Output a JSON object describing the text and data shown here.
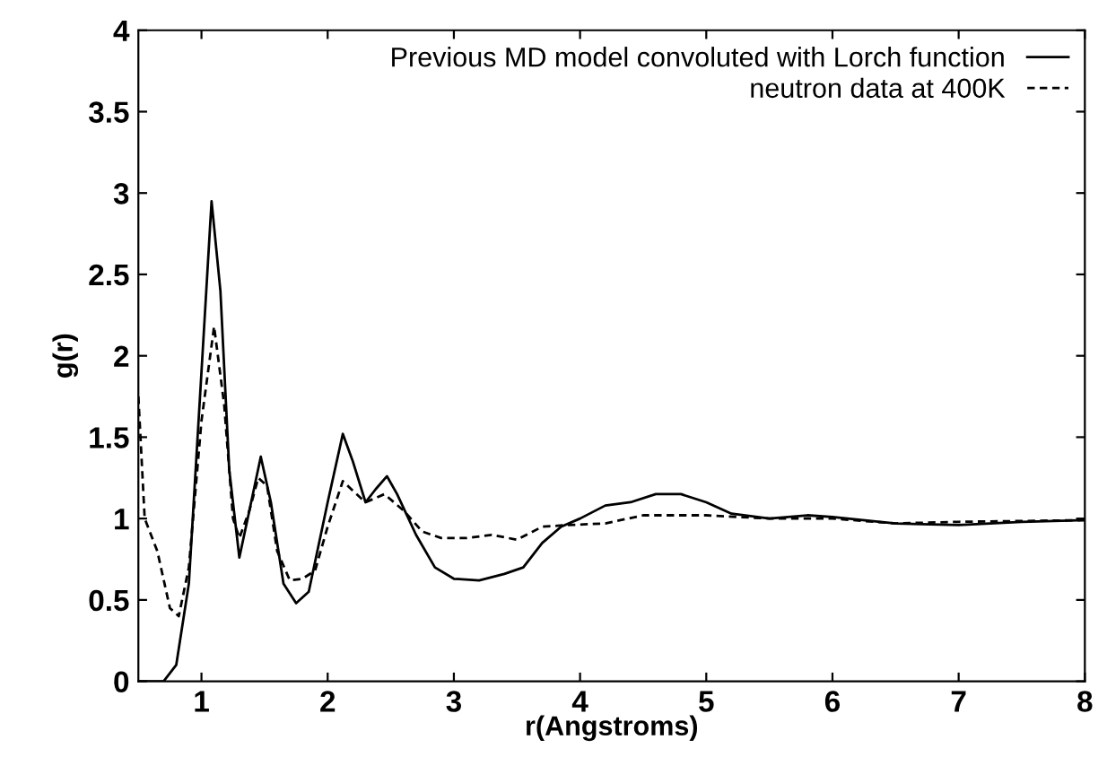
{
  "chart_data": {
    "type": "line",
    "xlabel": "r(Angstroms)",
    "ylabel": "g(r)",
    "xlim": [
      0.5,
      8
    ],
    "ylim": [
      0,
      4
    ],
    "xticks": [
      1,
      2,
      3,
      4,
      5,
      6,
      7,
      8
    ],
    "yticks": [
      0,
      0.5,
      1,
      1.5,
      2,
      2.5,
      3,
      3.5,
      4
    ],
    "legend": "top right",
    "grid": false,
    "marker": "none",
    "series": [
      {
        "name": "Previous MD model convoluted with Lorch function",
        "color": "#000000",
        "line_style": "solid",
        "x": [
          0.5,
          0.7,
          0.8,
          0.9,
          1.0,
          1.08,
          1.15,
          1.22,
          1.3,
          1.38,
          1.47,
          1.55,
          1.65,
          1.75,
          1.85,
          2.0,
          2.12,
          2.2,
          2.3,
          2.38,
          2.47,
          2.55,
          2.7,
          2.85,
          3.0,
          3.2,
          3.4,
          3.55,
          3.7,
          3.85,
          4.0,
          4.2,
          4.4,
          4.6,
          4.8,
          5.0,
          5.2,
          5.5,
          5.8,
          6.0,
          6.5,
          7.0,
          7.5,
          8.0
        ],
        "values": [
          0,
          0,
          0.1,
          0.6,
          1.9,
          2.95,
          2.4,
          1.3,
          0.76,
          1.05,
          1.38,
          1.1,
          0.6,
          0.48,
          0.55,
          1.1,
          1.52,
          1.35,
          1.1,
          1.18,
          1.26,
          1.15,
          0.9,
          0.7,
          0.63,
          0.62,
          0.66,
          0.7,
          0.85,
          0.95,
          1.0,
          1.08,
          1.1,
          1.15,
          1.15,
          1.1,
          1.03,
          1.0,
          1.02,
          1.01,
          0.97,
          0.96,
          0.98,
          0.99
        ]
      },
      {
        "name": "neutron data at 400K",
        "color": "#000000",
        "line_style": "dashed",
        "x": [
          0.5,
          0.55,
          0.65,
          0.75,
          0.82,
          0.9,
          1.0,
          1.1,
          1.18,
          1.25,
          1.3,
          1.38,
          1.45,
          1.52,
          1.6,
          1.7,
          1.8,
          1.9,
          2.0,
          2.12,
          2.2,
          2.3,
          2.45,
          2.6,
          2.75,
          2.9,
          3.1,
          3.3,
          3.5,
          3.7,
          3.9,
          4.2,
          4.5,
          4.8,
          5.0,
          5.5,
          6.0,
          6.5,
          7.0,
          8.0
        ],
        "values": [
          1.75,
          1.0,
          0.8,
          0.45,
          0.4,
          0.7,
          1.6,
          2.18,
          1.7,
          1.0,
          0.88,
          1.05,
          1.25,
          1.2,
          0.8,
          0.62,
          0.63,
          0.68,
          0.95,
          1.23,
          1.17,
          1.1,
          1.15,
          1.05,
          0.92,
          0.88,
          0.88,
          0.9,
          0.87,
          0.95,
          0.96,
          0.97,
          1.02,
          1.02,
          1.02,
          1.0,
          1.0,
          0.97,
          0.98,
          0.99
        ]
      }
    ]
  }
}
